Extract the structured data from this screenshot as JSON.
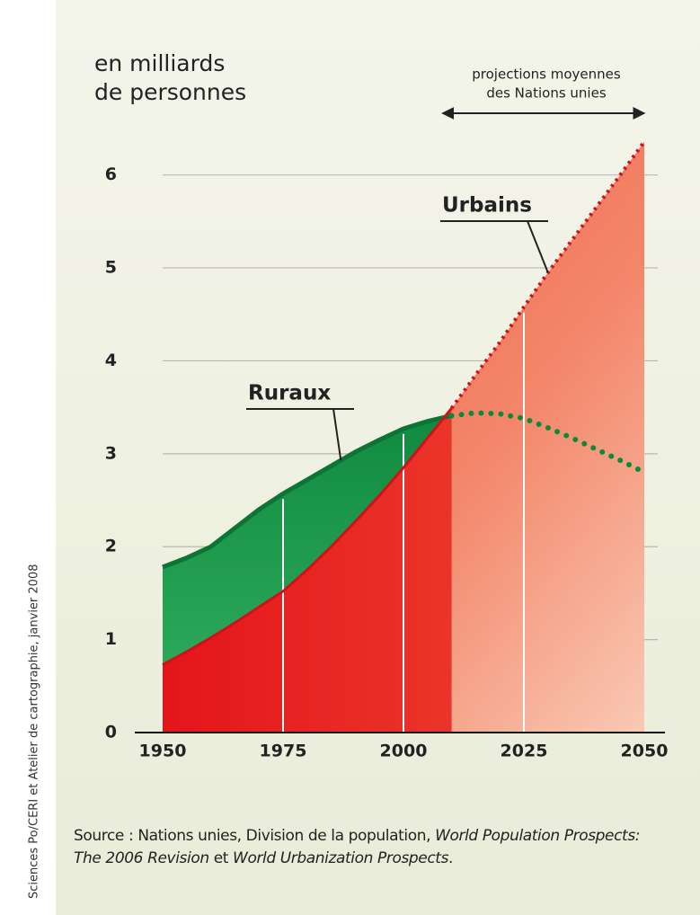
{
  "chart_data": {
    "type": "line",
    "ylabel": [
      "en milliards",
      "de personnes"
    ],
    "annotation": [
      "projections moyennes",
      "des Nations unies"
    ],
    "x": [
      1950,
      1955,
      1960,
      1965,
      1970,
      1975,
      1980,
      1985,
      1990,
      1995,
      2000,
      2005,
      2010,
      2015,
      2020,
      2025,
      2030,
      2035,
      2040,
      2045,
      2050
    ],
    "series": [
      {
        "name": "Urbains",
        "color": "#e8231f",
        "values": [
          0.73,
          0.87,
          1.02,
          1.18,
          1.35,
          1.52,
          1.75,
          2.0,
          2.27,
          2.55,
          2.85,
          3.17,
          3.49,
          3.85,
          4.2,
          4.58,
          4.95,
          5.3,
          5.65,
          6.0,
          6.36
        ]
      },
      {
        "name": "Ruraux",
        "color": "#1a9a4a",
        "values": [
          1.78,
          1.88,
          2.0,
          2.2,
          2.4,
          2.57,
          2.72,
          2.87,
          3.02,
          3.15,
          3.27,
          3.35,
          3.41,
          3.44,
          3.43,
          3.38,
          3.28,
          3.17,
          3.05,
          2.93,
          2.8
        ]
      }
    ],
    "xlim": [
      1950,
      2050
    ],
    "xticks": [
      1950,
      1975,
      2000,
      2025,
      2050
    ],
    "ylim": [
      0,
      6.5
    ],
    "yticks": [
      0,
      1,
      2,
      3,
      4,
      5,
      6
    ],
    "grid": true,
    "source": [
      {
        "text": "Source : Nations unies, Division de la population, ",
        "italic": false
      },
      {
        "text": "World Population Prospects: The 2006 Revision",
        "italic": true
      },
      {
        "text": " et ",
        "italic": false
      },
      {
        "text": "World Urbanization Prospects",
        "italic": true
      },
      {
        "text": ".",
        "italic": false
      }
    ],
    "credit": "Sciences Po/CERI et Atelier de cartographie, janvier 2008"
  }
}
